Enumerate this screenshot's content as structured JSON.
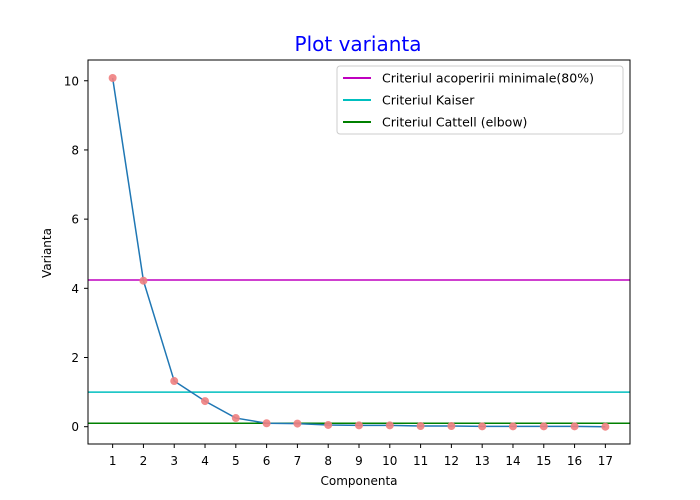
{
  "chart_data": {
    "type": "line",
    "title": "Plot varianta",
    "title_color": "#0000ff",
    "xlabel": "Componenta",
    "ylabel": "Varianta",
    "x": [
      1,
      2,
      3,
      4,
      5,
      6,
      7,
      8,
      9,
      10,
      11,
      12,
      13,
      14,
      15,
      16,
      17
    ],
    "xlim": [
      0.2,
      17.8
    ],
    "ylim": [
      -0.5,
      10.6
    ],
    "yticks": [
      0,
      2,
      4,
      6,
      8,
      10
    ],
    "grid": false,
    "legend_position": "top-right",
    "series": [
      {
        "values": [
          10.08,
          4.22,
          1.32,
          0.74,
          0.25,
          0.1,
          0.09,
          0.05,
          0.04,
          0.04,
          0.02,
          0.02,
          0.01,
          0.01,
          0.01,
          0.01,
          0.0
        ],
        "line_color": "#1f77b4",
        "marker_color": "#f08080"
      }
    ],
    "reference_lines": [
      {
        "name": "Criteriul acoperirii minimale(80%)",
        "y": 4.24,
        "color": "#bf00bf"
      },
      {
        "name": "Criteriul Kaiser",
        "y": 1.0,
        "color": "#00bfbf"
      },
      {
        "name": "Criteriul Cattell (elbow)",
        "y": 0.1,
        "color": "#008000"
      }
    ]
  }
}
